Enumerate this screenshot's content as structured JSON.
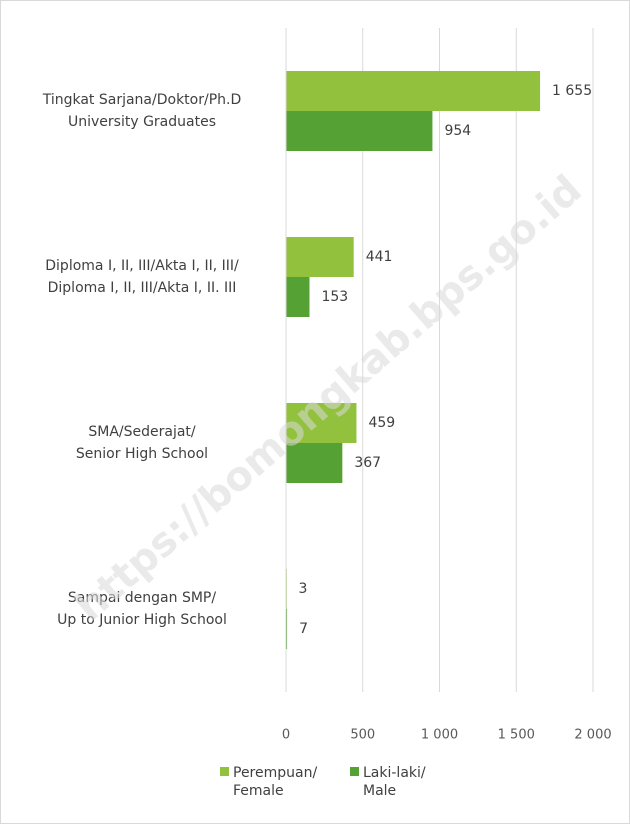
{
  "chart_data": {
    "type": "hbar",
    "watermark": "https://bomongkab.bps.go.id",
    "categories": [
      [
        "Tingkat Sarjana/Doktor/Ph.D",
        "University Graduates"
      ],
      [
        "Diploma I, II, III/Akta I, II, III/",
        "Diploma I, II, III/Akta I, II. III"
      ],
      [
        "SMA/Sederajat/",
        "Senior High School"
      ],
      [
        "Sampai dengan SMP/",
        "Up to Junior High School"
      ]
    ],
    "series": [
      {
        "name": [
          "Perempuan/",
          "Female"
        ],
        "color": "#92c13e",
        "values": [
          1655,
          441,
          459,
          3
        ],
        "value_labels": [
          "1 655",
          "441",
          "459",
          "3"
        ]
      },
      {
        "name": [
          "Laki-laki/",
          "Male"
        ],
        "color": "#55a134",
        "values": [
          954,
          153,
          367,
          7
        ],
        "value_labels": [
          "954",
          "153",
          "367",
          "7"
        ]
      }
    ],
    "xlim": [
      0,
      2000
    ],
    "xticks": [
      0,
      500,
      {
        "value": 1000,
        "label": "1 000"
      },
      {
        "value": 1500,
        "label": "1 500"
      },
      {
        "value": 2000,
        "label": "2 000"
      }
    ],
    "grid": true,
    "legend": "bottom"
  }
}
